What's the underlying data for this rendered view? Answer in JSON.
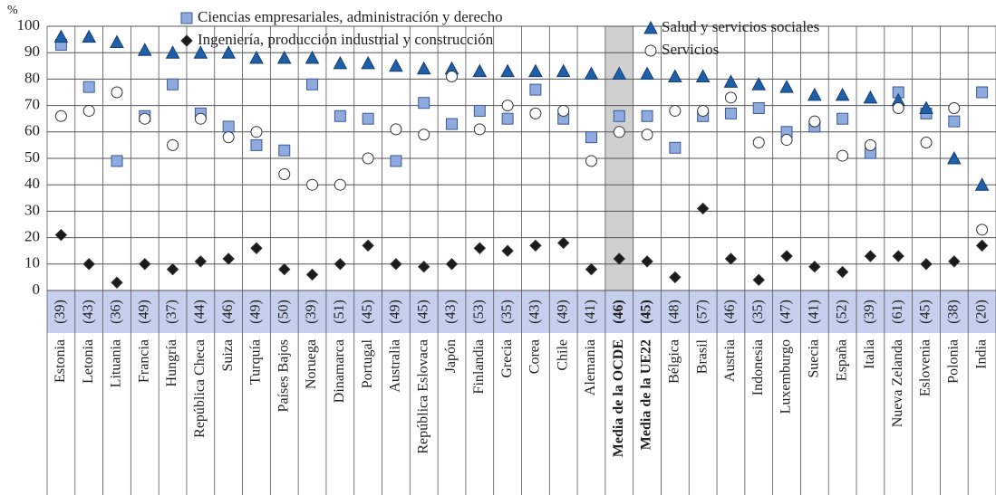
{
  "chart_data": {
    "type": "dot",
    "y_unit": "%",
    "categories": [
      "Estonia",
      "Letonia",
      "Lituania",
      "Francia",
      "Hungría",
      "República Checa",
      "Suiza",
      "Turquía",
      "Países Bajos",
      "Noruega",
      "Dinamarca",
      "Portugal",
      "Australia",
      "República Eslovaca",
      "Japón",
      "Finlandia",
      "Grecia",
      "Corea",
      "Chile",
      "Alemania",
      "Media de la OCDE",
      "Media de la UE22",
      "Bélgica",
      "Brasil",
      "Austria",
      "Indonesia",
      "Luxemburgo",
      "Suecia",
      "España",
      "Italia",
      "Nueva Zelanda",
      "Eslovenia",
      "Polonia",
      "India"
    ],
    "counts": [
      "(39)",
      "(43)",
      "(36)",
      "(49)",
      "(37)",
      "(44)",
      "(46)",
      "(49)",
      "(50)",
      "(39)",
      "(51)",
      "(45)",
      "(49)",
      "(45)",
      "(43)",
      "(53)",
      "(35)",
      "(43)",
      "(49)",
      "(41)",
      "(46)",
      "(45)",
      "(48)",
      "(57)",
      "(46)",
      "(35)",
      "(47)",
      "(41)",
      "(52)",
      "(39)",
      "(61)",
      "(45)",
      "(38)",
      "(20)"
    ],
    "highlighted": [
      "Media de la OCDE"
    ],
    "bold": [
      "Media de la OCDE",
      "Media de la UE22"
    ],
    "series": [
      {
        "name": "Ciencias empresariales, administración y derecho",
        "marker": "square",
        "color": "#8faadc",
        "values": [
          93,
          77,
          49,
          66,
          78,
          67,
          62,
          55,
          53,
          78,
          66,
          65,
          49,
          71,
          63,
          68,
          65,
          76,
          65,
          58,
          66,
          66,
          54,
          66,
          67,
          69,
          60,
          62,
          65,
          52,
          75,
          67,
          64,
          75
        ]
      },
      {
        "name": "Ingeniería, producción industrial y construcción",
        "marker": "diamond",
        "color": "#1a1a1a",
        "values": [
          21,
          10,
          3,
          10,
          8,
          11,
          12,
          16,
          8,
          6,
          10,
          17,
          10,
          9,
          10,
          16,
          15,
          17,
          18,
          8,
          12,
          11,
          5,
          31,
          12,
          4,
          13,
          9,
          7,
          13,
          13,
          10,
          11,
          17
        ]
      },
      {
        "name": "Salud y servicios sociales",
        "marker": "triangle",
        "color": "#1f5fa8",
        "values": [
          96,
          96,
          94,
          91,
          90,
          90,
          90,
          88,
          88,
          88,
          86,
          86,
          85,
          84,
          84,
          83,
          83,
          83,
          83,
          82,
          82,
          82,
          81,
          81,
          79,
          78,
          77,
          74,
          74,
          73,
          72,
          69,
          50,
          40
        ]
      },
      {
        "name": "Servicios",
        "marker": "circle",
        "color": "#ffffff",
        "values": [
          66,
          68,
          75,
          65,
          55,
          65,
          58,
          60,
          44,
          40,
          40,
          50,
          61,
          59,
          81,
          61,
          70,
          67,
          68,
          49,
          60,
          59,
          68,
          68,
          73,
          56,
          57,
          64,
          51,
          55,
          69,
          56,
          69,
          23
        ]
      }
    ],
    "ylim": [
      0,
      100
    ],
    "yticks": [
      0,
      10,
      20,
      30,
      40,
      50,
      60,
      70,
      80,
      90,
      100
    ],
    "grid": true
  }
}
